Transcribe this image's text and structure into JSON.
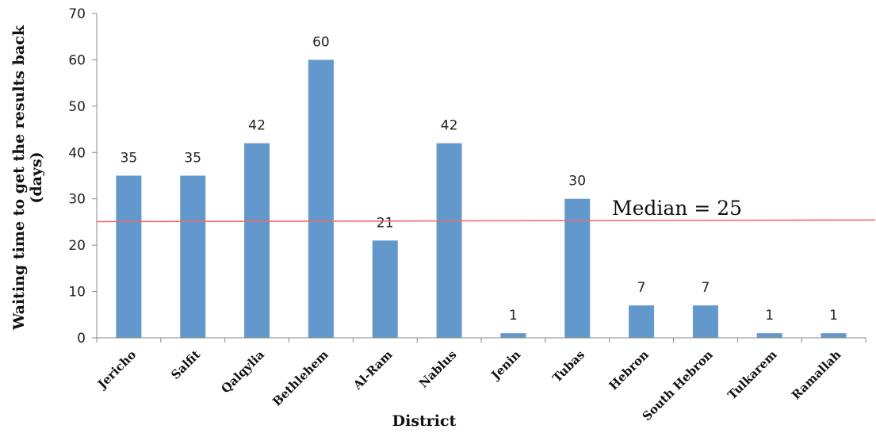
{
  "chart_data": {
    "type": "bar",
    "categories": [
      "Jericho",
      "Salfit",
      "Qalqylia",
      "Bethlehem",
      "Al-Ram",
      "Nablus",
      "Jenin",
      "Tubas",
      "Hebron",
      "South Hebron",
      "Tulkarem",
      "Ramallah"
    ],
    "values": [
      35,
      35,
      42,
      60,
      21,
      42,
      1,
      30,
      7,
      7,
      1,
      1
    ],
    "data_labels": [
      "35",
      "35",
      "42",
      "60",
      "21",
      "42",
      "1",
      "30",
      "7",
      "7",
      "1",
      "1"
    ],
    "xlabel": "District",
    "ylabel_line1": "Waiting time to get the results back",
    "ylabel_line2": "(days)",
    "ylim": [
      0,
      70
    ],
    "yticks": [
      0,
      10,
      20,
      30,
      40,
      50,
      60,
      70
    ],
    "ytick_labels": [
      "0",
      "10",
      "20",
      "30",
      "40",
      "50",
      "60",
      "70"
    ],
    "grid": false,
    "median": {
      "value": 25,
      "label": "Median = 25"
    },
    "colors": {
      "bar": "#6398cc",
      "median_line": "#ee6a6a",
      "axis": "#8a8a8a"
    }
  }
}
